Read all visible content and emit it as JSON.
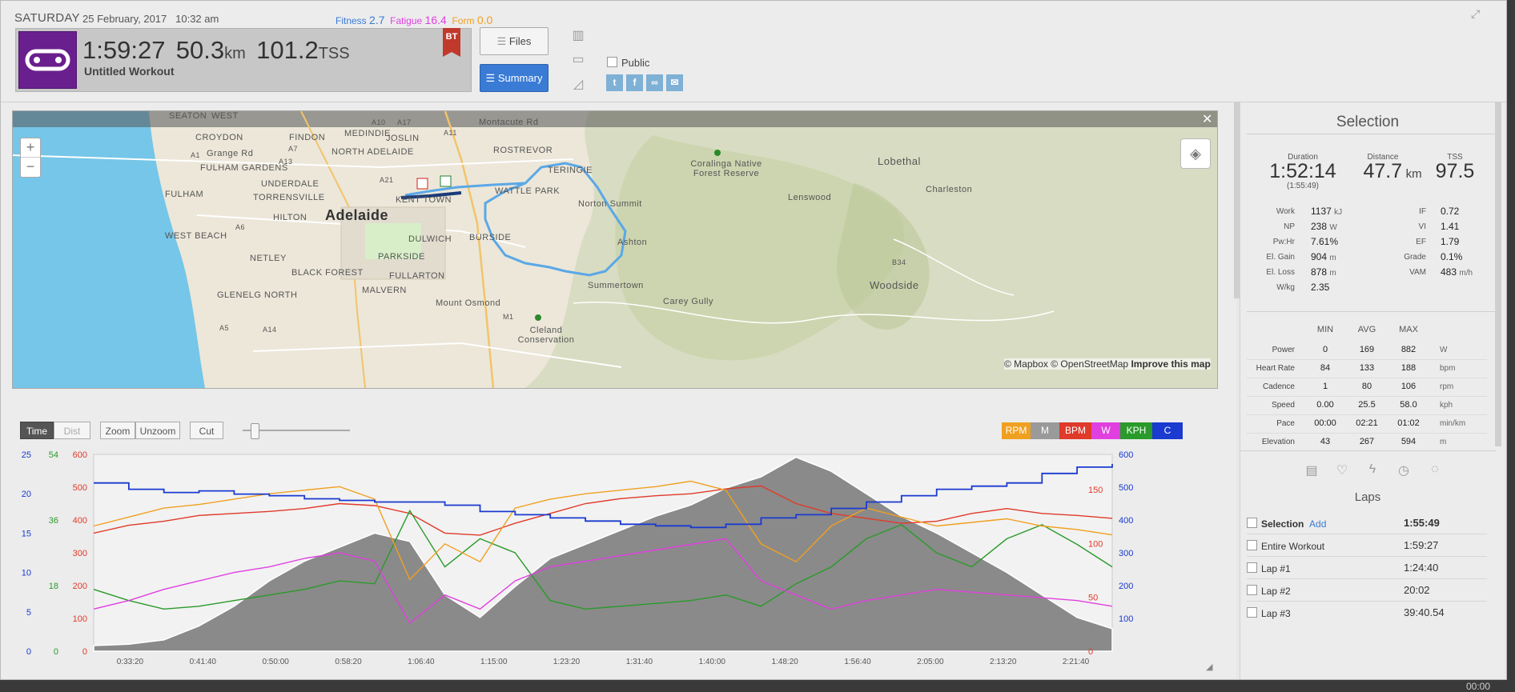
{
  "header": {
    "day": "SATURDAY",
    "date": "25 February, 2017",
    "time": "10:32 am",
    "fitness_label": "Fitness",
    "fitness_value": "2.7",
    "fatigue_label": "Fatigue",
    "fatigue_value": "16.4",
    "form_label": "Form",
    "form_value": "0.0",
    "duration": "1:59:27",
    "distance": "50.3",
    "distance_unit": "km",
    "tss": "101.2",
    "tss_unit": "TSS",
    "workout_name": "Untitled Workout",
    "badge": "BT",
    "files_label": "Files",
    "summary_label": "Summary",
    "public_label": "Public",
    "colors": {
      "accent": "#3a7bd5",
      "logo": "#6a1f8e",
      "badge": "#c0392b"
    }
  },
  "map": {
    "attribution_1": "© Mapbox",
    "attribution_2": "© OpenStreetMap",
    "attribution_3": "Improve this map",
    "zoom_in": "+",
    "zoom_out": "−",
    "labels": [
      "SEATON",
      "CROYDON",
      "FINDON",
      "Grange Rd",
      "FULHAM GARDENS",
      "FULHAM",
      "UNDERDALE",
      "TORRENSVILLE",
      "HILTON",
      "WEST BEACH",
      "NETLEY",
      "BLACK FOREST",
      "GLENELG NORTH",
      "MEDINDIE",
      "JOSLIN",
      "NORTH ADELAIDE",
      "Adelaide",
      "KENT TOWN",
      "DULWICH",
      "PARKSIDE",
      "FULLARTON",
      "MALVERN",
      "Mount Osmond",
      "ROSTREVOR",
      "TERINGIE",
      "Norton Summit",
      "WATTLE PARK",
      "BURSIDE",
      "Summertown",
      "Ashton",
      "Carey Gully",
      "Coralinga Native Forest Reserve",
      "Lobethal",
      "Charleston",
      "Lenswood",
      "Woodside",
      "Cleland Conservation",
      "Montacute Rd",
      "WEST",
      "A10",
      "A17",
      "A11",
      "A7",
      "A1",
      "A13",
      "A21",
      "A6",
      "A5",
      "A14",
      "M1",
      "B34"
    ]
  },
  "toolbar": {
    "time": "Time",
    "dist": "Dist",
    "zoom": "Zoom",
    "unzoom": "Unzoom",
    "cut": "Cut"
  },
  "legend": [
    {
      "label": "RPM",
      "color": "#f0a020"
    },
    {
      "label": "M",
      "color": "#9a9a9a"
    },
    {
      "label": "BPM",
      "color": "#e03a2a"
    },
    {
      "label": "W",
      "color": "#e040e0"
    },
    {
      "label": "KPH",
      "color": "#2a9a2a"
    },
    {
      "label": "C",
      "color": "#1a3ad0"
    }
  ],
  "chart_data": {
    "type": "line",
    "x_ticks": [
      "0:33:20",
      "0:41:40",
      "0:50:00",
      "0:58:20",
      "1:06:40",
      "1:15:00",
      "1:23:20",
      "1:31:40",
      "1:40:00",
      "1:48:20",
      "1:56:40",
      "2:05:00",
      "2:13:20",
      "2:21:40"
    ],
    "axis_blue": [
      "25",
      "20",
      "15",
      "10",
      "5",
      "0"
    ],
    "axis_green": [
      "54",
      "36",
      "18",
      "0"
    ],
    "axis_red": [
      "600",
      "500",
      "400",
      "300",
      "200",
      "100",
      "0"
    ],
    "axis_blue_right": [
      "600",
      "500",
      "400",
      "300",
      "200",
      "100"
    ],
    "axis_orange": [
      "100",
      "80",
      "60",
      "40",
      "20",
      "0"
    ],
    "axis_red_right": [
      "150",
      "100",
      "50",
      "0"
    ],
    "series": [
      {
        "name": "M",
        "color": "#8a8a8a",
        "values": [
          20,
          25,
          40,
          90,
          160,
          250,
          320,
          370,
          420,
          390,
          200,
          120,
          230,
          330,
          380,
          430,
          480,
          520,
          580,
          620,
          690,
          640,
          560,
          480,
          420,
          350,
          280,
          200,
          120,
          80
        ]
      },
      {
        "name": "BPM",
        "color": "#e03a2a",
        "values": [
          120,
          128,
          132,
          138,
          140,
          142,
          145,
          150,
          148,
          140,
          120,
          118,
          130,
          140,
          150,
          155,
          158,
          160,
          165,
          168,
          150,
          140,
          135,
          130,
          132,
          140,
          145,
          140,
          138,
          135
        ]
      },
      {
        "name": "KPH",
        "color": "#2a9a2a",
        "values": [
          22,
          18,
          15,
          16,
          18,
          20,
          22,
          25,
          24,
          50,
          30,
          40,
          35,
          18,
          15,
          16,
          17,
          18,
          20,
          16,
          24,
          30,
          40,
          45,
          35,
          30,
          40,
          45,
          38,
          30
        ]
      },
      {
        "name": "W",
        "color": "#e040e0",
        "values": [
          150,
          180,
          220,
          250,
          280,
          300,
          330,
          350,
          320,
          100,
          200,
          150,
          250,
          300,
          320,
          340,
          360,
          380,
          400,
          250,
          200,
          150,
          180,
          200,
          220,
          210,
          200,
          190,
          180,
          160
        ]
      },
      {
        "name": "RPM",
        "color": "#f0a020",
        "values": [
          70,
          75,
          80,
          82,
          85,
          88,
          90,
          92,
          85,
          40,
          60,
          50,
          80,
          85,
          88,
          90,
          92,
          95,
          90,
          60,
          50,
          70,
          80,
          75,
          70,
          72,
          74,
          70,
          68,
          65
        ]
      },
      {
        "name": "C",
        "color": "#1a3ad0",
        "values": [
          530,
          510,
          500,
          505,
          495,
          490,
          480,
          475,
          470,
          470,
          460,
          440,
          430,
          420,
          410,
          400,
          395,
          390,
          400,
          420,
          430,
          450,
          470,
          490,
          510,
          520,
          530,
          560,
          580,
          590
        ]
      }
    ]
  },
  "selection": {
    "title": "Selection",
    "duration_label": "Duration",
    "duration": "1:52:14",
    "duration_sub": "(1:55:49)",
    "distance_label": "Distance",
    "distance": "47.7",
    "distance_unit": "km",
    "tss_label": "TSS",
    "tss": "97.5",
    "left_metrics": [
      {
        "k": "Work",
        "v": "1137",
        "u": "kJ"
      },
      {
        "k": "NP",
        "v": "238",
        "u": "W"
      },
      {
        "k": "Pw:Hr",
        "v": "7.61%",
        "u": ""
      },
      {
        "k": "El. Gain",
        "v": "904",
        "u": "m"
      },
      {
        "k": "El. Loss",
        "v": "878",
        "u": "m"
      },
      {
        "k": "W/kg",
        "v": "2.35",
        "u": ""
      }
    ],
    "right_metrics": [
      {
        "k": "IF",
        "v": "0.72",
        "u": ""
      },
      {
        "k": "VI",
        "v": "1.41",
        "u": ""
      },
      {
        "k": "EF",
        "v": "1.79",
        "u": ""
      },
      {
        "k": "Grade",
        "v": "0.1%",
        "u": ""
      },
      {
        "k": "VAM",
        "v": "483",
        "u": "m/h"
      }
    ],
    "mm_headers": [
      "MIN",
      "AVG",
      "MAX"
    ],
    "mm_rows": [
      {
        "k": "Power",
        "min": "0",
        "avg": "169",
        "max": "882",
        "u": "W"
      },
      {
        "k": "Heart Rate",
        "min": "84",
        "avg": "133",
        "max": "188",
        "u": "bpm"
      },
      {
        "k": "Cadence",
        "min": "1",
        "avg": "80",
        "max": "106",
        "u": "rpm"
      },
      {
        "k": "Speed",
        "min": "0.00",
        "avg": "25.5",
        "max": "58.0",
        "u": "kph"
      },
      {
        "k": "Pace",
        "min": "00:00",
        "avg": "02:21",
        "max": "01:02",
        "u": "min/km"
      },
      {
        "k": "Elevation",
        "min": "43",
        "avg": "267",
        "max": "594",
        "u": "m"
      }
    ]
  },
  "laps": {
    "title": "Laps",
    "add_label": "Add",
    "items": [
      {
        "name": "Selection",
        "time": "1:55:49",
        "bold": true
      },
      {
        "name": "Entire Workout",
        "time": "1:59:27",
        "bold": false
      },
      {
        "name": "Lap #1",
        "time": "1:24:40",
        "bold": false
      },
      {
        "name": "Lap #2",
        "time": "20:02",
        "bold": false
      },
      {
        "name": "Lap #3",
        "time": "39:40.54",
        "bold": false
      }
    ]
  },
  "bottom_time": "00:00"
}
